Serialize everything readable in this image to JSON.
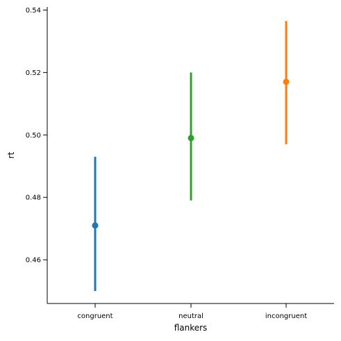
{
  "chart_data": {
    "type": "point",
    "categories": [
      "congruent",
      "neutral",
      "incongruent"
    ],
    "points": [
      {
        "category": "congruent",
        "y": 0.471,
        "ci_low": 0.45,
        "ci_high": 0.493,
        "color": "#1f77b4"
      },
      {
        "category": "neutral",
        "y": 0.499,
        "ci_low": 0.479,
        "ci_high": 0.52,
        "color": "#2ca02c"
      },
      {
        "category": "incongruent",
        "y": 0.517,
        "ci_low": 0.497,
        "ci_high": 0.5365,
        "color": "#ff7f0e"
      }
    ],
    "xlabel": "flankers",
    "ylabel": "rt",
    "ylim": [
      0.446,
      0.541
    ],
    "yticks": [
      0.46,
      0.48,
      0.5,
      0.52,
      0.54
    ],
    "ytick_labels": [
      "0.46",
      "0.48",
      "0.50",
      "0.52",
      "0.54"
    ],
    "grid": false,
    "legend": "none"
  }
}
